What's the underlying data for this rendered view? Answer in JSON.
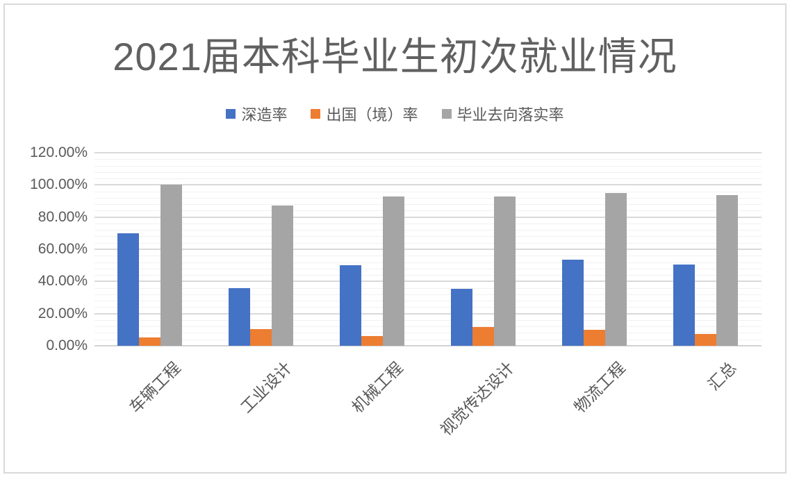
{
  "chart_data": {
    "type": "bar",
    "title": "2021届本科毕业生初次就业情况",
    "categories": [
      "车辆工程",
      "工业设计",
      "机械工程",
      "视觉传达设计",
      "物流工程",
      "汇总"
    ],
    "series": [
      {
        "name": "深造率",
        "color": "#4472C4",
        "values": [
          70.0,
          36.0,
          50.0,
          35.5,
          53.5,
          50.5
        ]
      },
      {
        "name": "出国（境）率",
        "color": "#ED7D31",
        "values": [
          5.0,
          10.5,
          6.0,
          11.5,
          10.0,
          7.5
        ]
      },
      {
        "name": "毕业去向落实率",
        "color": "#A5A5A5",
        "values": [
          100.0,
          87.0,
          93.0,
          93.0,
          95.0,
          93.5
        ]
      }
    ],
    "xlabel": "",
    "ylabel": "",
    "y_axis": {
      "min": 0,
      "max": 120,
      "major_step": 20,
      "minor_step": 4,
      "tick_labels": [
        "0.00%",
        "20.00%",
        "40.00%",
        "60.00%",
        "80.00%",
        "100.00%",
        "120.00%"
      ]
    },
    "legend_position": "top",
    "grid": {
      "major": true,
      "minor": true
    }
  },
  "colors": {
    "frame_border": "#d9d9d9",
    "title_text": "#606060",
    "axis_text": "#595959",
    "major_gridline": "#d9d9d9",
    "minor_gridline": "#f1f1f1",
    "axis_line": "#d2d2d2",
    "background": "#ffffff"
  }
}
